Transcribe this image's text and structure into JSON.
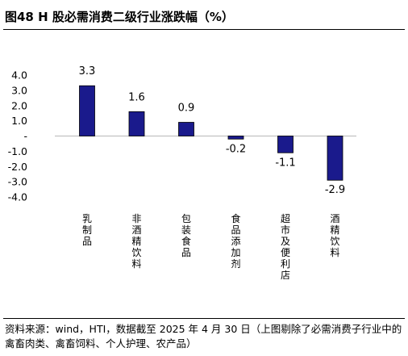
{
  "title": "图48 H 股必需消费二级行业涨跌幅（%）",
  "chart_data": {
    "type": "bar",
    "categories": [
      "乳制品",
      "非酒精饮料",
      "包装食品",
      "食品添加剂",
      "超市及便利店",
      "酒精饮料"
    ],
    "values": [
      3.3,
      1.6,
      0.9,
      -0.2,
      -1.1,
      -2.9
    ],
    "data_labels": [
      "3.3",
      "1.6",
      "0.9",
      "-0.2",
      "-1.1",
      "-2.9"
    ],
    "yticks": [
      4.0,
      3.0,
      2.0,
      1.0,
      0,
      -1.0,
      -2.0,
      -3.0,
      -4.0
    ],
    "ytick_labels": [
      "4.0",
      "3.0",
      "2.0",
      "1.0",
      "-",
      "-1.0",
      "-2.0",
      "-3.0",
      "-4.0"
    ],
    "ylim": [
      -4.0,
      4.0
    ],
    "grid": false,
    "legend": "none",
    "bar_color": "#1A1A8C"
  },
  "source": "资料来源：wind，HTI，数据截至 2025 年 4 月 30 日（上图剔除了必需消费子行业中的禽畜肉类、禽畜饲料、个人护理、农产品）"
}
